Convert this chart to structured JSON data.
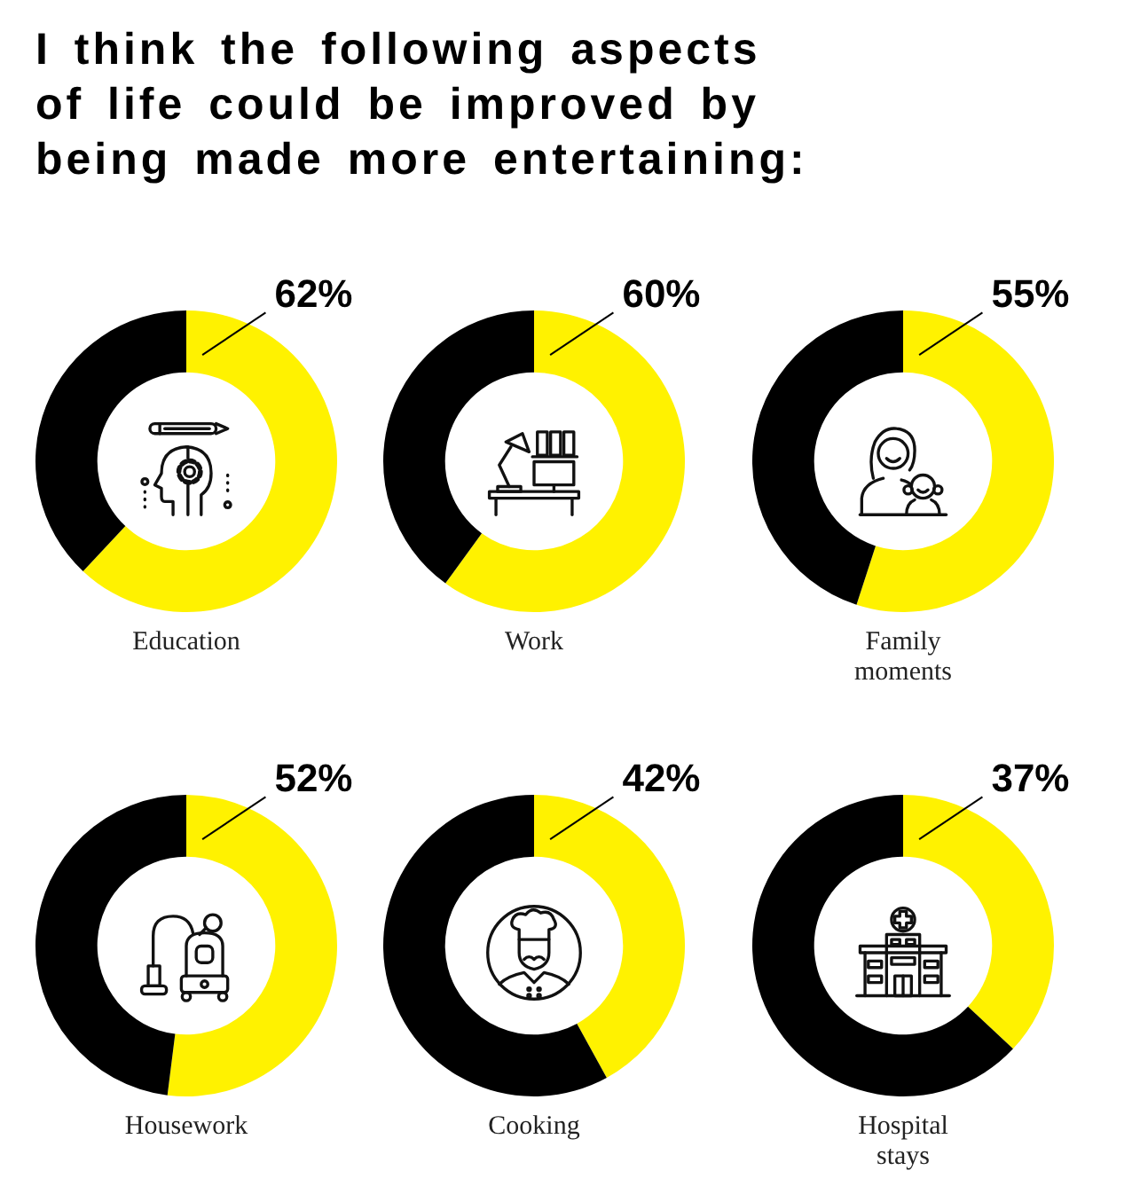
{
  "chart_data": [
    {
      "type": "other",
      "title": "I think the following aspects of life could be improved by being made more entertaining:"
    },
    {
      "type": "donut",
      "title": "Education",
      "categories": [
        null,
        null
      ],
      "values": [
        62,
        38
      ],
      "colors": [
        "#fff200",
        "#000000"
      ],
      "value_labels": [
        "62%",
        null
      ]
    },
    {
      "type": "donut",
      "title": "Work",
      "categories": [
        null,
        null
      ],
      "values": [
        60,
        40
      ],
      "colors": [
        "#fff200",
        "#000000"
      ],
      "value_labels": [
        "60%",
        null
      ]
    },
    {
      "type": "donut",
      "title": "Family moments",
      "categories": [
        null,
        null
      ],
      "values": [
        55,
        45
      ],
      "colors": [
        "#fff200",
        "#000000"
      ],
      "value_labels": [
        "55%",
        null
      ]
    },
    {
      "type": "donut",
      "title": "Housework",
      "categories": [
        null,
        null
      ],
      "values": [
        52,
        48
      ],
      "colors": [
        "#fff200",
        "#000000"
      ],
      "value_labels": [
        "52%",
        null
      ]
    },
    {
      "type": "donut",
      "title": "Cooking",
      "categories": [
        null,
        null
      ],
      "values": [
        42,
        58
      ],
      "colors": [
        "#fff200",
        "#000000"
      ],
      "value_labels": [
        "42%",
        null
      ]
    },
    {
      "type": "donut",
      "title": "Hospital stays",
      "categories": [
        null,
        null
      ],
      "values": [
        37,
        63
      ],
      "colors": [
        "#fff200",
        "#000000"
      ],
      "value_labels": [
        "37%",
        null
      ]
    }
  ]
}
